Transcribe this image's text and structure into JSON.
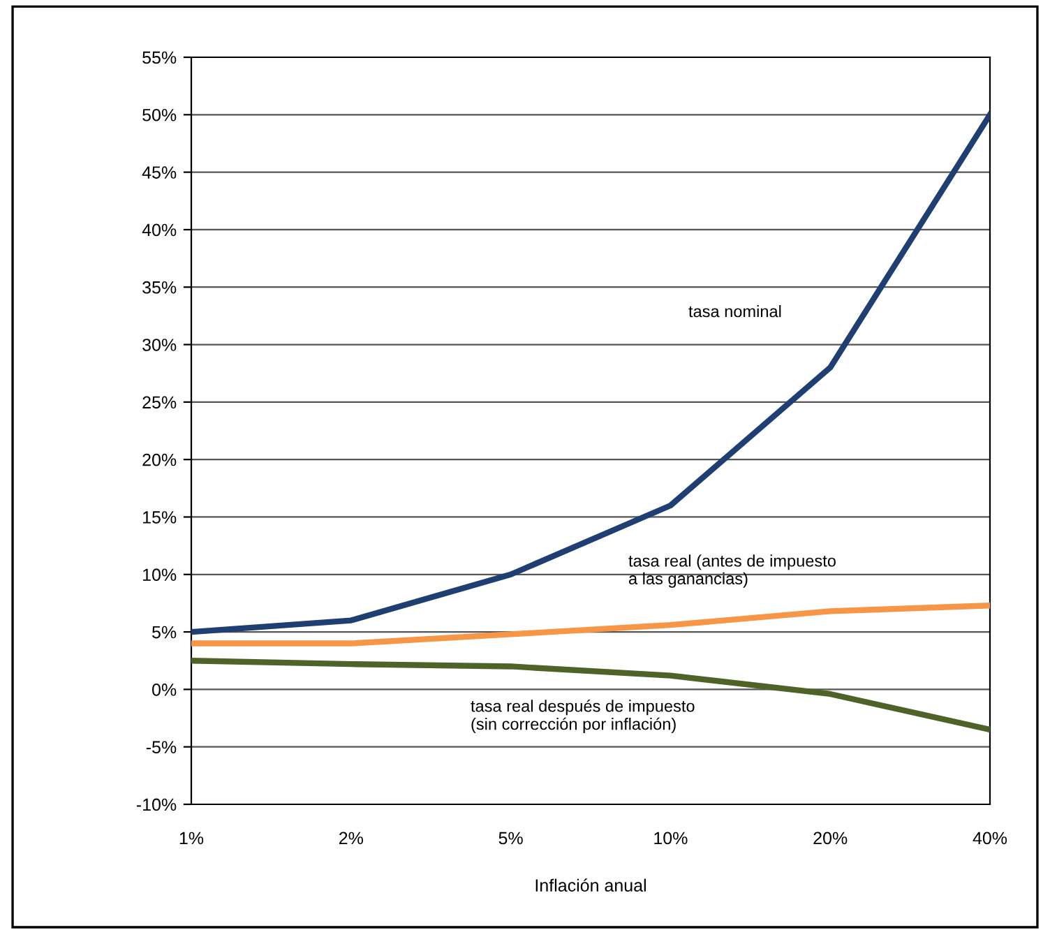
{
  "chart_data": {
    "type": "line",
    "xlabel": "Inflación anual",
    "categories": [
      "1%",
      "2%",
      "5%",
      "10%",
      "20%",
      "40%"
    ],
    "series": [
      {
        "color": "#1f3f73",
        "values": [
          5,
          6,
          10,
          16,
          28,
          50
        ]
      },
      {
        "color": "#f79646",
        "values": [
          4,
          4,
          4.8,
          5.6,
          6.8,
          7.3
        ]
      },
      {
        "color": "#4f6228",
        "values": [
          2.5,
          2.2,
          2,
          1.2,
          -0.4,
          -3.5
        ]
      }
    ],
    "ylim": [
      -10,
      55
    ],
    "yticks": [
      {
        "value": -10,
        "label": "-10%"
      },
      {
        "value": -5,
        "label": "-5%"
      },
      {
        "value": 0,
        "label": "0%"
      },
      {
        "value": 5,
        "label": "5%"
      },
      {
        "value": 10,
        "label": "10%"
      },
      {
        "value": 15,
        "label": "15%"
      },
      {
        "value": 20,
        "label": "20%"
      },
      {
        "value": 25,
        "label": "25%"
      },
      {
        "value": 30,
        "label": "30%"
      },
      {
        "value": 35,
        "label": "35%"
      },
      {
        "value": 40,
        "label": "40%"
      },
      {
        "value": 45,
        "label": "45%"
      },
      {
        "value": 50,
        "label": "50%"
      },
      {
        "value": 55,
        "label": "55%"
      }
    ],
    "grid": "y",
    "marker": "none",
    "line_style": "solid",
    "annotations": [
      "tasa nominal",
      "tasa real (antes de impuesto\na las ganancias)",
      "tasa real después de impuesto\n(sin corrección por inflación)"
    ]
  }
}
